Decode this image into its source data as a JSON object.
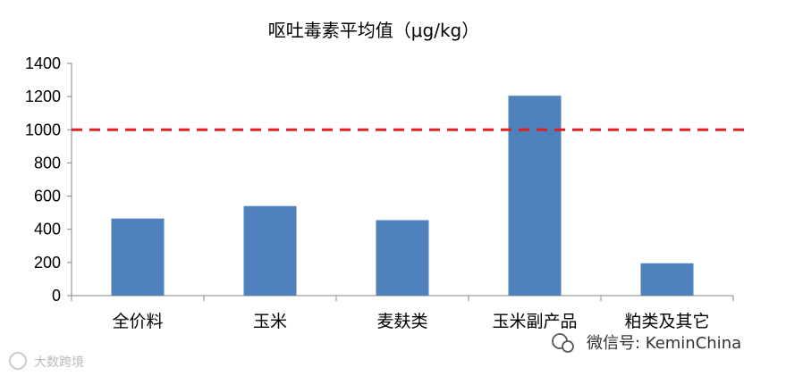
{
  "chart_data": {
    "type": "bar",
    "title": "呕吐毒素平均值（μg/kg）",
    "categories": [
      "全价料",
      "玉米",
      "麦麸类",
      "玉米副产品",
      "粕类及其它"
    ],
    "values": [
      465,
      540,
      455,
      1205,
      195
    ],
    "ylim": [
      0,
      1400
    ],
    "yticks": [
      0,
      200,
      400,
      600,
      800,
      1000,
      1200,
      1400
    ],
    "reference_line": {
      "value": 1000,
      "style": "dashed"
    },
    "grid": false,
    "colors": {
      "bar": "#4F81BD",
      "reference": "#E02020"
    }
  },
  "watermarks": {
    "wechat": "微信号: KeminChina",
    "corner": "大数跨境"
  }
}
